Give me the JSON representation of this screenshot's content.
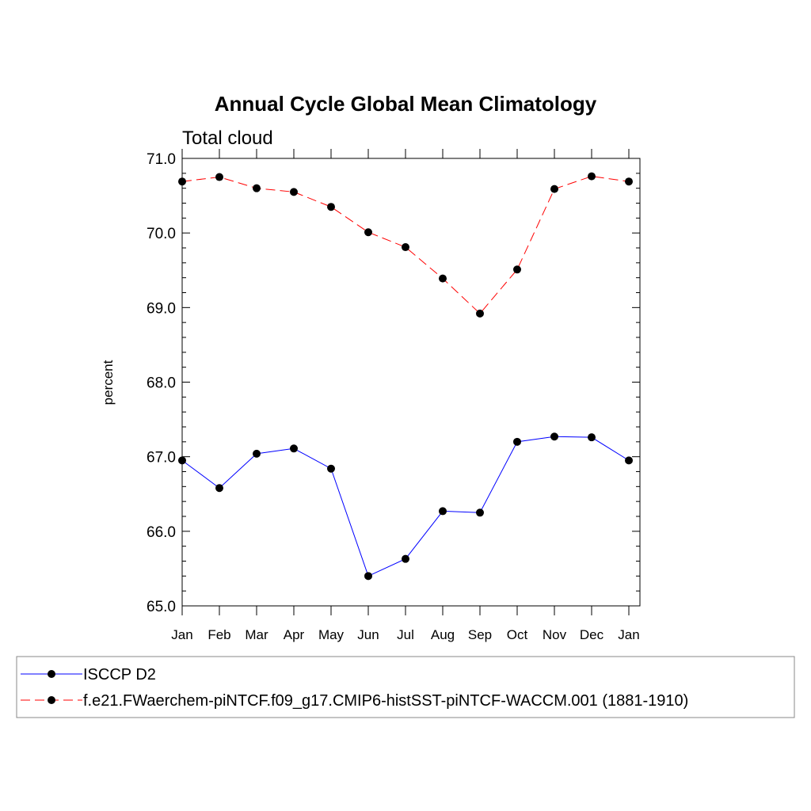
{
  "chart_data": {
    "type": "line",
    "title": "Annual Cycle Global Mean Climatology",
    "subtitle": "Total cloud",
    "xlabel": "",
    "ylabel": "percent",
    "ylim": [
      65.0,
      71.0
    ],
    "yticks": [
      "65.0",
      "66.0",
      "67.0",
      "68.0",
      "69.0",
      "70.0",
      "71.0"
    ],
    "categories": [
      "Jan",
      "Feb",
      "Mar",
      "Apr",
      "May",
      "Jun",
      "Jul",
      "Aug",
      "Sep",
      "Oct",
      "Nov",
      "Dec",
      "Jan"
    ],
    "grid": false,
    "legend_position": "bottom",
    "series": [
      {
        "name": "ISCCP D2",
        "color": "#0000ff",
        "dash": "solid",
        "marker": "filled-circle",
        "values": [
          66.95,
          66.58,
          67.04,
          67.11,
          66.84,
          65.4,
          65.63,
          66.27,
          66.25,
          67.2,
          67.27,
          67.26,
          66.95
        ]
      },
      {
        "name": "f.e21.FWaerchem-piNTCF.f09_g17.CMIP6-histSST-piNTCF-WACCM.001 (1881-1910)",
        "color": "#ff0000",
        "dash": "dashed",
        "marker": "filled-circle",
        "values": [
          70.69,
          70.75,
          70.6,
          70.55,
          70.35,
          70.01,
          69.81,
          69.39,
          68.92,
          69.51,
          70.59,
          70.76,
          70.69
        ]
      }
    ]
  }
}
